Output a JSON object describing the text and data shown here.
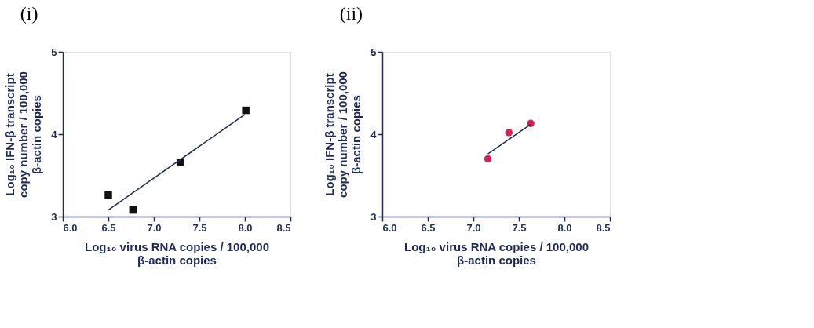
{
  "chart_data": [
    {
      "type": "scatter",
      "title": "(i)",
      "xlabel": "Log₁₀ virus RNA copies / 100,000\nβ-actin copies",
      "ylabel": "Log₁₀ IFN-β transcript\ncopy number / 100,000\nβ-actin copies",
      "xlim": [
        6.0,
        8.5
      ],
      "ylim": [
        3,
        5
      ],
      "xticks": [
        {
          "value": 6.0,
          "label": "6.0"
        },
        {
          "value": 6.5,
          "label": "6.5"
        },
        {
          "value": 7.0,
          "label": "7.0"
        },
        {
          "value": 7.5,
          "label": "7.5"
        },
        {
          "value": 8.0,
          "label": "8.0"
        },
        {
          "value": 8.5,
          "label": "8.5"
        }
      ],
      "yticks": [
        3,
        4,
        5
      ],
      "grid": false,
      "series": [
        {
          "type": "scatter",
          "marker": "square",
          "color": "#111111",
          "x": [
            6.5,
            6.77,
            7.29,
            8.01
          ],
          "values": [
            3.26,
            3.08,
            3.66,
            4.29
          ]
        },
        {
          "type": "line",
          "line_style": "solid",
          "color": "#1f2a5a",
          "x": [
            6.5,
            8.0
          ],
          "values": [
            3.08,
            4.24
          ]
        }
      ]
    },
    {
      "type": "scatter",
      "title": "(ii)",
      "xlabel": "Log₁₀ virus RNA copies / 100,000\nβ-actin copies",
      "ylabel": "Log₁₀ IFN-β transcript\ncopy number / 100,000\nβ-actin copies",
      "xlim": [
        6.0,
        8.5
      ],
      "ylim": [
        3,
        5
      ],
      "xticks": [
        {
          "value": 6.0,
          "label": "6.0"
        },
        {
          "value": 6.5,
          "label": "6.5"
        },
        {
          "value": 7.0,
          "label": "7.0"
        },
        {
          "value": 7.5,
          "label": "7.5"
        },
        {
          "value": 8.0,
          "label": "8.0"
        },
        {
          "value": 8.5,
          "label": "8.5"
        }
      ],
      "yticks": [
        3,
        4,
        5
      ],
      "grid": false,
      "series": [
        {
          "type": "scatter",
          "marker": "circle",
          "color": "#d6205a",
          "x": [
            7.16,
            7.39,
            7.63
          ],
          "values": [
            3.7,
            4.02,
            4.13
          ]
        },
        {
          "type": "line",
          "line_style": "solid",
          "color": "#1f2a5a",
          "x": [
            7.16,
            7.63
          ],
          "values": [
            3.76,
            4.12
          ]
        }
      ]
    }
  ]
}
